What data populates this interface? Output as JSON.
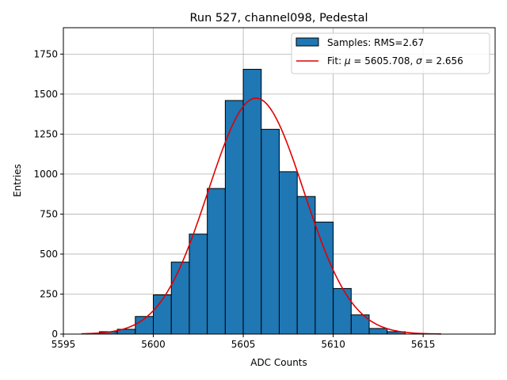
{
  "chart_data": {
    "type": "bar",
    "title": "Run 527, channel098, Pedestal",
    "xlabel": "ADC Counts",
    "ylabel": "Entries",
    "xlim": [
      5595,
      5619
    ],
    "ylim": [
      0,
      1915
    ],
    "xticks": [
      5595,
      5600,
      5605,
      5610,
      5615
    ],
    "yticks": [
      0,
      250,
      500,
      750,
      1000,
      1250,
      1500,
      1750
    ],
    "grid": true,
    "legend_position": "top-right",
    "histogram": {
      "name": "Samples: RMS=2.67",
      "color": "#1f77b4",
      "bin_edges": [
        5597,
        5598,
        5599,
        5600,
        5601,
        5602,
        5603,
        5604,
        5605,
        5606,
        5607,
        5608,
        5609,
        5610,
        5611,
        5612,
        5613,
        5614
      ],
      "counts": [
        15,
        30,
        110,
        245,
        450,
        625,
        910,
        1460,
        1655,
        1280,
        1015,
        860,
        700,
        285,
        120,
        35,
        15
      ]
    },
    "fit": {
      "name_prefix": "Fit: ",
      "name_mu": "μ",
      "name_mid": " = 5605.708, ",
      "name_sigma": "σ",
      "name_suffix": " = 2.656",
      "color": "#e00000",
      "mu": 5605.708,
      "sigma": 2.656,
      "amplitude": 1475,
      "x_range": [
        5596,
        5616
      ]
    }
  }
}
